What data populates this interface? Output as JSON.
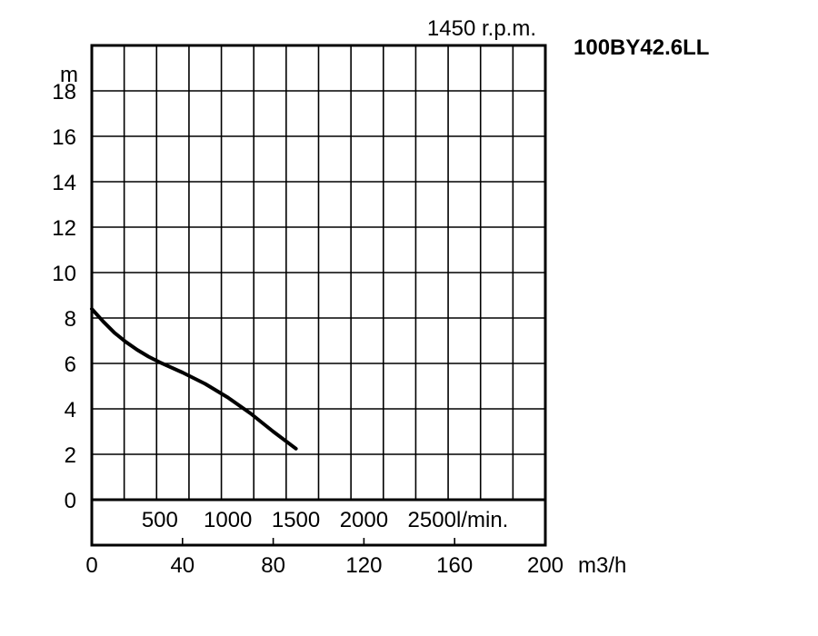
{
  "chart_data": {
    "type": "line",
    "title": "100BY42.6LL",
    "subtitle": "1450 r.p.m.",
    "xlabel": "m3/h",
    "ylabel": "m",
    "secondary_xlabel": "l/min.",
    "xlim": [
      0,
      200
    ],
    "ylim": [
      0,
      20
    ],
    "x_ticks": [
      "0",
      "40",
      "80",
      "120",
      "160",
      "200"
    ],
    "y_ticks": [
      "0",
      "2",
      "4",
      "6",
      "8",
      "10",
      "12",
      "14",
      "16",
      "18"
    ],
    "secondary_x_ticks": [
      "500",
      "1000",
      "1500",
      "2000",
      "2500"
    ],
    "grid": true,
    "series": [
      {
        "x": [
          0,
          5,
          10,
          15,
          20,
          25,
          30,
          40,
          50,
          60,
          70,
          80,
          90
        ],
        "y": [
          8.4,
          7.85,
          7.35,
          6.95,
          6.6,
          6.3,
          6.05,
          5.6,
          5.1,
          4.5,
          3.8,
          3.0,
          2.25
        ]
      }
    ]
  }
}
